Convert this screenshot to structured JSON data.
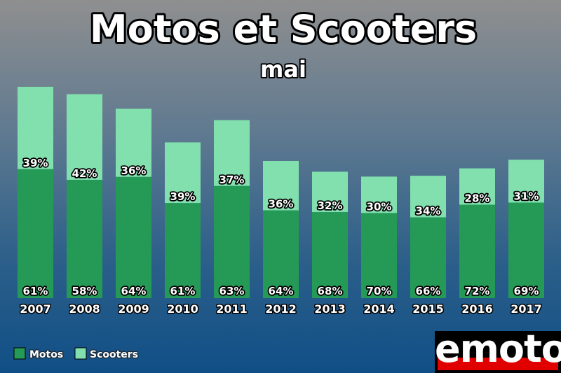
{
  "title": "Motos et Scooters",
  "subtitle": "mai",
  "logo": {
    "text": "emoto"
  },
  "colors": {
    "motos": "#259a57",
    "scooters": "#82e0ae",
    "logo_red": "#e00000"
  },
  "legend": [
    {
      "label": "Motos",
      "color": "#259a57"
    },
    {
      "label": "Scooters",
      "color": "#82e0ae"
    }
  ],
  "chart_data": {
    "type": "bar",
    "stacked": true,
    "title": "Motos et Scooters",
    "subtitle": "mai",
    "categories": [
      "2007",
      "2008",
      "2009",
      "2010",
      "2011",
      "2012",
      "2013",
      "2014",
      "2015",
      "2016",
      "2017"
    ],
    "totals_relative": [
      1.0,
      0.965,
      0.896,
      0.737,
      0.842,
      0.649,
      0.598,
      0.575,
      0.579,
      0.614,
      0.655
    ],
    "series": [
      {
        "name": "Motos",
        "color": "#259a57",
        "values": [
          61,
          58,
          64,
          61,
          63,
          64,
          68,
          70,
          66,
          72,
          69
        ]
      },
      {
        "name": "Scooters",
        "color": "#82e0ae",
        "values": [
          39,
          42,
          36,
          39,
          37,
          36,
          32,
          30,
          34,
          28,
          31
        ]
      }
    ],
    "value_suffix": "%",
    "xlabel": "",
    "ylabel": "",
    "legend_position": "bottom-left",
    "grid": false
  }
}
